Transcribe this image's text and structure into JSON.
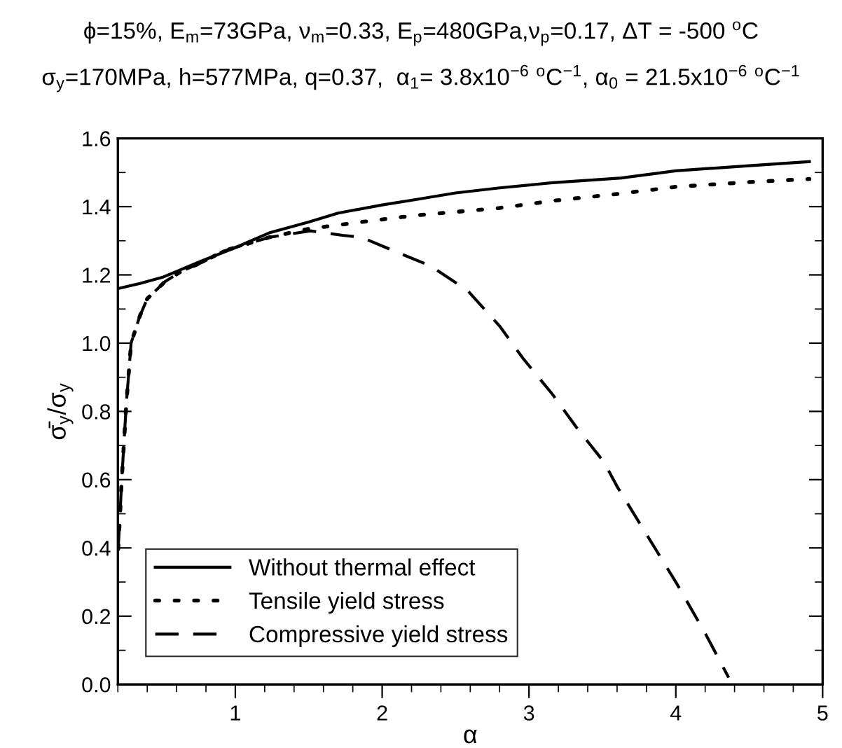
{
  "chart_data": {
    "type": "line",
    "title": "ϕ=15%, E$_{m}$=73GPa, ν$_{m}$=0.33, E$_{p}$=480GPa,ν$_{p}$=0.17, ΔT = -500 $^{o}$C",
    "subtitle": "σ$_{y}$=170MPa, h=577MPa, q=0.37,  α$_{1}$= 3.8x10$^{−6}$ $^{o}$C$^{−1}$, α$_{0}$ = 21.5x10$^{−6}$ $^{o}$C$^{−1}$",
    "xlabel": "α",
    "ylabel": "σ̄$_{y}$/σ$_{y}$",
    "series": [
      {
        "name": "Without thermal effect",
        "color": "#000000",
        "line_style": "solid",
        "x": [
          0.2,
          0.35,
          0.51,
          0.76,
          1.0,
          1.23,
          1.5,
          1.7,
          2.0,
          2.22,
          2.5,
          2.8,
          3.16,
          3.63,
          4.0,
          4.5,
          4.91
        ],
        "values": [
          1.16,
          1.175,
          1.194,
          1.239,
          1.28,
          1.323,
          1.355,
          1.381,
          1.405,
          1.42,
          1.44,
          1.455,
          1.47,
          1.484,
          1.505,
          1.52,
          1.532
        ]
      },
      {
        "name": "Tensile yield stress",
        "color": "#000000",
        "line_style": "dotted",
        "x": [
          0.2,
          0.215,
          0.225,
          0.257,
          0.29,
          0.35,
          0.4,
          0.52,
          0.63,
          0.79,
          0.92,
          1.23,
          1.5,
          1.86,
          2.22,
          2.8,
          3.16,
          3.6,
          4.0,
          4.5,
          4.91
        ],
        "values": [
          0.38,
          0.5,
          0.59,
          0.82,
          1.0,
          1.08,
          1.13,
          1.18,
          1.21,
          1.24,
          1.27,
          1.31,
          1.335,
          1.355,
          1.374,
          1.396,
          1.417,
          1.437,
          1.458,
          1.472,
          1.481
        ]
      },
      {
        "name": "Compressive yield stress",
        "color": "#000000",
        "line_style": "dashed",
        "x": [
          0.2,
          0.215,
          0.225,
          0.257,
          0.29,
          0.35,
          0.4,
          0.52,
          0.63,
          0.79,
          0.92,
          1.23,
          1.51,
          1.73,
          1.86,
          2.11,
          2.33,
          2.58,
          2.8,
          2.96,
          3.16,
          3.32,
          3.51,
          3.6,
          3.8,
          4.0,
          4.2,
          4.36
        ],
        "values": [
          0.38,
          0.5,
          0.59,
          0.82,
          1.0,
          1.08,
          1.13,
          1.18,
          1.21,
          1.24,
          1.27,
          1.31,
          1.329,
          1.316,
          1.31,
          1.265,
          1.226,
          1.155,
          1.05,
          0.955,
          0.85,
          0.755,
          0.652,
          0.58,
          0.44,
          0.3,
          0.15,
          0.02
        ]
      }
    ],
    "xlim": [
      0.2,
      5
    ],
    "ylim": [
      0.0,
      1.6
    ],
    "xticks": [
      1,
      2,
      3,
      4,
      5
    ],
    "yticks": [
      {
        "value": 0.0,
        "label": "0.0"
      },
      {
        "value": 0.2,
        "label": "0.2"
      },
      {
        "value": 0.4,
        "label": "0.4"
      },
      {
        "value": 0.6,
        "label": "0.6"
      },
      {
        "value": 0.8,
        "label": "0.8"
      },
      {
        "value": 1.0,
        "label": "1.0"
      },
      {
        "value": 1.2,
        "label": "1.2"
      },
      {
        "value": 1.4,
        "label": "1.4"
      },
      {
        "value": 1.6,
        "label": "1.6"
      }
    ],
    "grid": false,
    "legend": "bottom left",
    "marker": "none"
  }
}
